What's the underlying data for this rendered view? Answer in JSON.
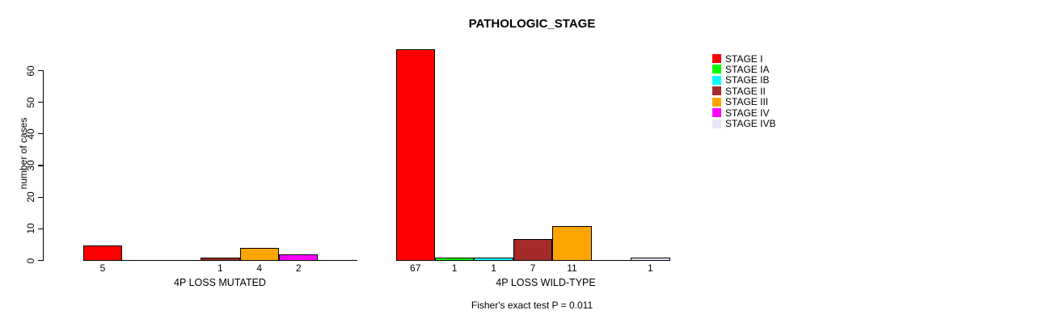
{
  "figure": {
    "title": "PATHOLOGIC_STAGE",
    "annotation": "Fisher's exact test P = 0.011"
  },
  "chart_data": {
    "type": "bar",
    "title": "PATHOLOGIC_STAGE",
    "xlabel": "",
    "ylabel": "number of cases",
    "ylim": [
      0,
      60
    ],
    "yticks": [
      0,
      10,
      20,
      30,
      40,
      50,
      60
    ],
    "grid": false,
    "legend_position": "right",
    "bar_value_labels": true,
    "categories": [
      "4P LOSS MUTATED",
      "4P LOSS WILD-TYPE"
    ],
    "series": [
      {
        "name": "STAGE I",
        "color": "#FF0000",
        "values": [
          5,
          67
        ]
      },
      {
        "name": "STAGE IA",
        "color": "#00FF00",
        "values": [
          0,
          1
        ]
      },
      {
        "name": "STAGE IB",
        "color": "#00FFFF",
        "values": [
          0,
          1
        ]
      },
      {
        "name": "STAGE II",
        "color": "#A52A2A",
        "values": [
          1,
          7
        ]
      },
      {
        "name": "STAGE III",
        "color": "#FFA500",
        "values": [
          4,
          11
        ]
      },
      {
        "name": "STAGE IV",
        "color": "#FF00FF",
        "values": [
          2,
          0
        ]
      },
      {
        "name": "STAGE IVB",
        "color": "#E6E6FA",
        "values": [
          0,
          1
        ]
      }
    ],
    "annotation": "Fisher's exact test P = 0.011"
  }
}
